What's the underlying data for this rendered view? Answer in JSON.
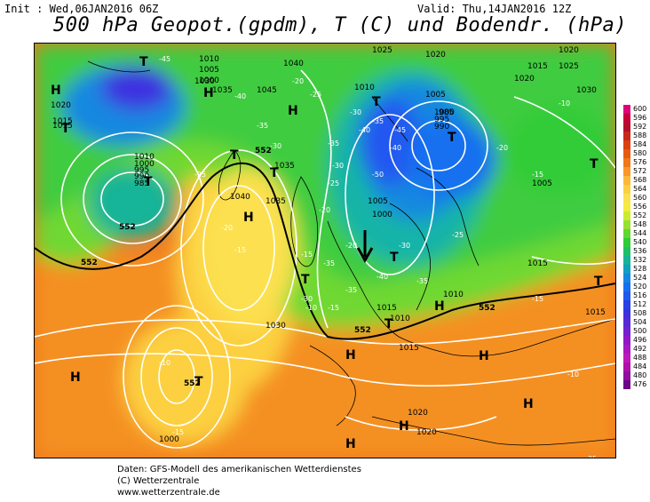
{
  "header": {
    "init": "Init : Wed,06JAN2016 06Z",
    "valid": "Valid: Thu,14JAN2016 12Z",
    "title": "500 hPa Geopot.(gpdm), T (C) und Bodendr. (hPa)"
  },
  "legend": {
    "values": [
      "600",
      "596",
      "592",
      "588",
      "584",
      "580",
      "576",
      "572",
      "568",
      "564",
      "560",
      "556",
      "552",
      "548",
      "544",
      "540",
      "536",
      "532",
      "528",
      "524",
      "520",
      "516",
      "512",
      "508",
      "504",
      "500",
      "496",
      "492",
      "488",
      "484",
      "480",
      "476"
    ],
    "colors": [
      "#e0007c",
      "#c8003c",
      "#b4102c",
      "#c82818",
      "#dc4010",
      "#e85a10",
      "#f07818",
      "#f89828",
      "#fcb838",
      "#fcd040",
      "#fce050",
      "#f4ec3c",
      "#c8ec30",
      "#98e030",
      "#60d830",
      "#30cc38",
      "#20c068",
      "#18b498",
      "#10a0c0",
      "#1488e0",
      "#1870f0",
      "#2058f0",
      "#2840e8",
      "#3c30e0",
      "#5828d8",
      "#7420d0",
      "#9018c8",
      "#a818c0",
      "#c018b8",
      "#b010a8",
      "#9010a0",
      "#6c0888"
    ]
  },
  "map_labels": {
    "pressure": [
      "1025",
      "1020",
      "1015",
      "1030",
      "1035",
      "1040",
      "1045",
      "1010",
      "1005",
      "1000",
      "995",
      "990",
      "985",
      "1015",
      "1020",
      "1010",
      "1005",
      "1000",
      "1035",
      "1040",
      "1015",
      "1020",
      "1010",
      "1000",
      "995",
      "990",
      "985",
      "1005",
      "1000",
      "1015",
      "1025",
      "1030",
      "1035",
      "1020",
      "1010",
      "1015",
      "1000",
      "1020",
      "1020",
      "1005",
      "1010",
      "1015",
      "1030",
      "1015"
    ],
    "temperature": [
      "-45",
      "-40",
      "-35",
      "-30",
      "-25",
      "-20",
      "-15",
      "-10",
      "-40",
      "-35",
      "-30",
      "-25",
      "-20",
      "-15",
      "-10",
      "-50",
      "-45",
      "-40",
      "-35",
      "-30",
      "-25",
      "-20",
      "-15",
      "-10",
      "-25",
      "-20",
      "-15",
      "-10",
      "-30",
      "-35",
      "-20",
      "-15",
      "-10",
      "-25",
      "-30",
      "-35",
      "-40",
      "-35",
      "-15"
    ],
    "geopot": [
      "552",
      "552",
      "552",
      "552",
      "552",
      "552"
    ],
    "highs": [
      "H",
      "H",
      "H",
      "H",
      "H",
      "H",
      "H",
      "H",
      "H",
      "H",
      "H"
    ],
    "lows": [
      "T",
      "T",
      "T",
      "T",
      "T",
      "T",
      "T",
      "T",
      "T",
      "T",
      "T",
      "T",
      "T"
    ]
  },
  "footer": {
    "line1": "Daten: GFS-Modell des amerikanischen Wetterdienstes",
    "line2": "(C) Wetterzentrale",
    "line3": "www.wetterzentrale.de"
  }
}
